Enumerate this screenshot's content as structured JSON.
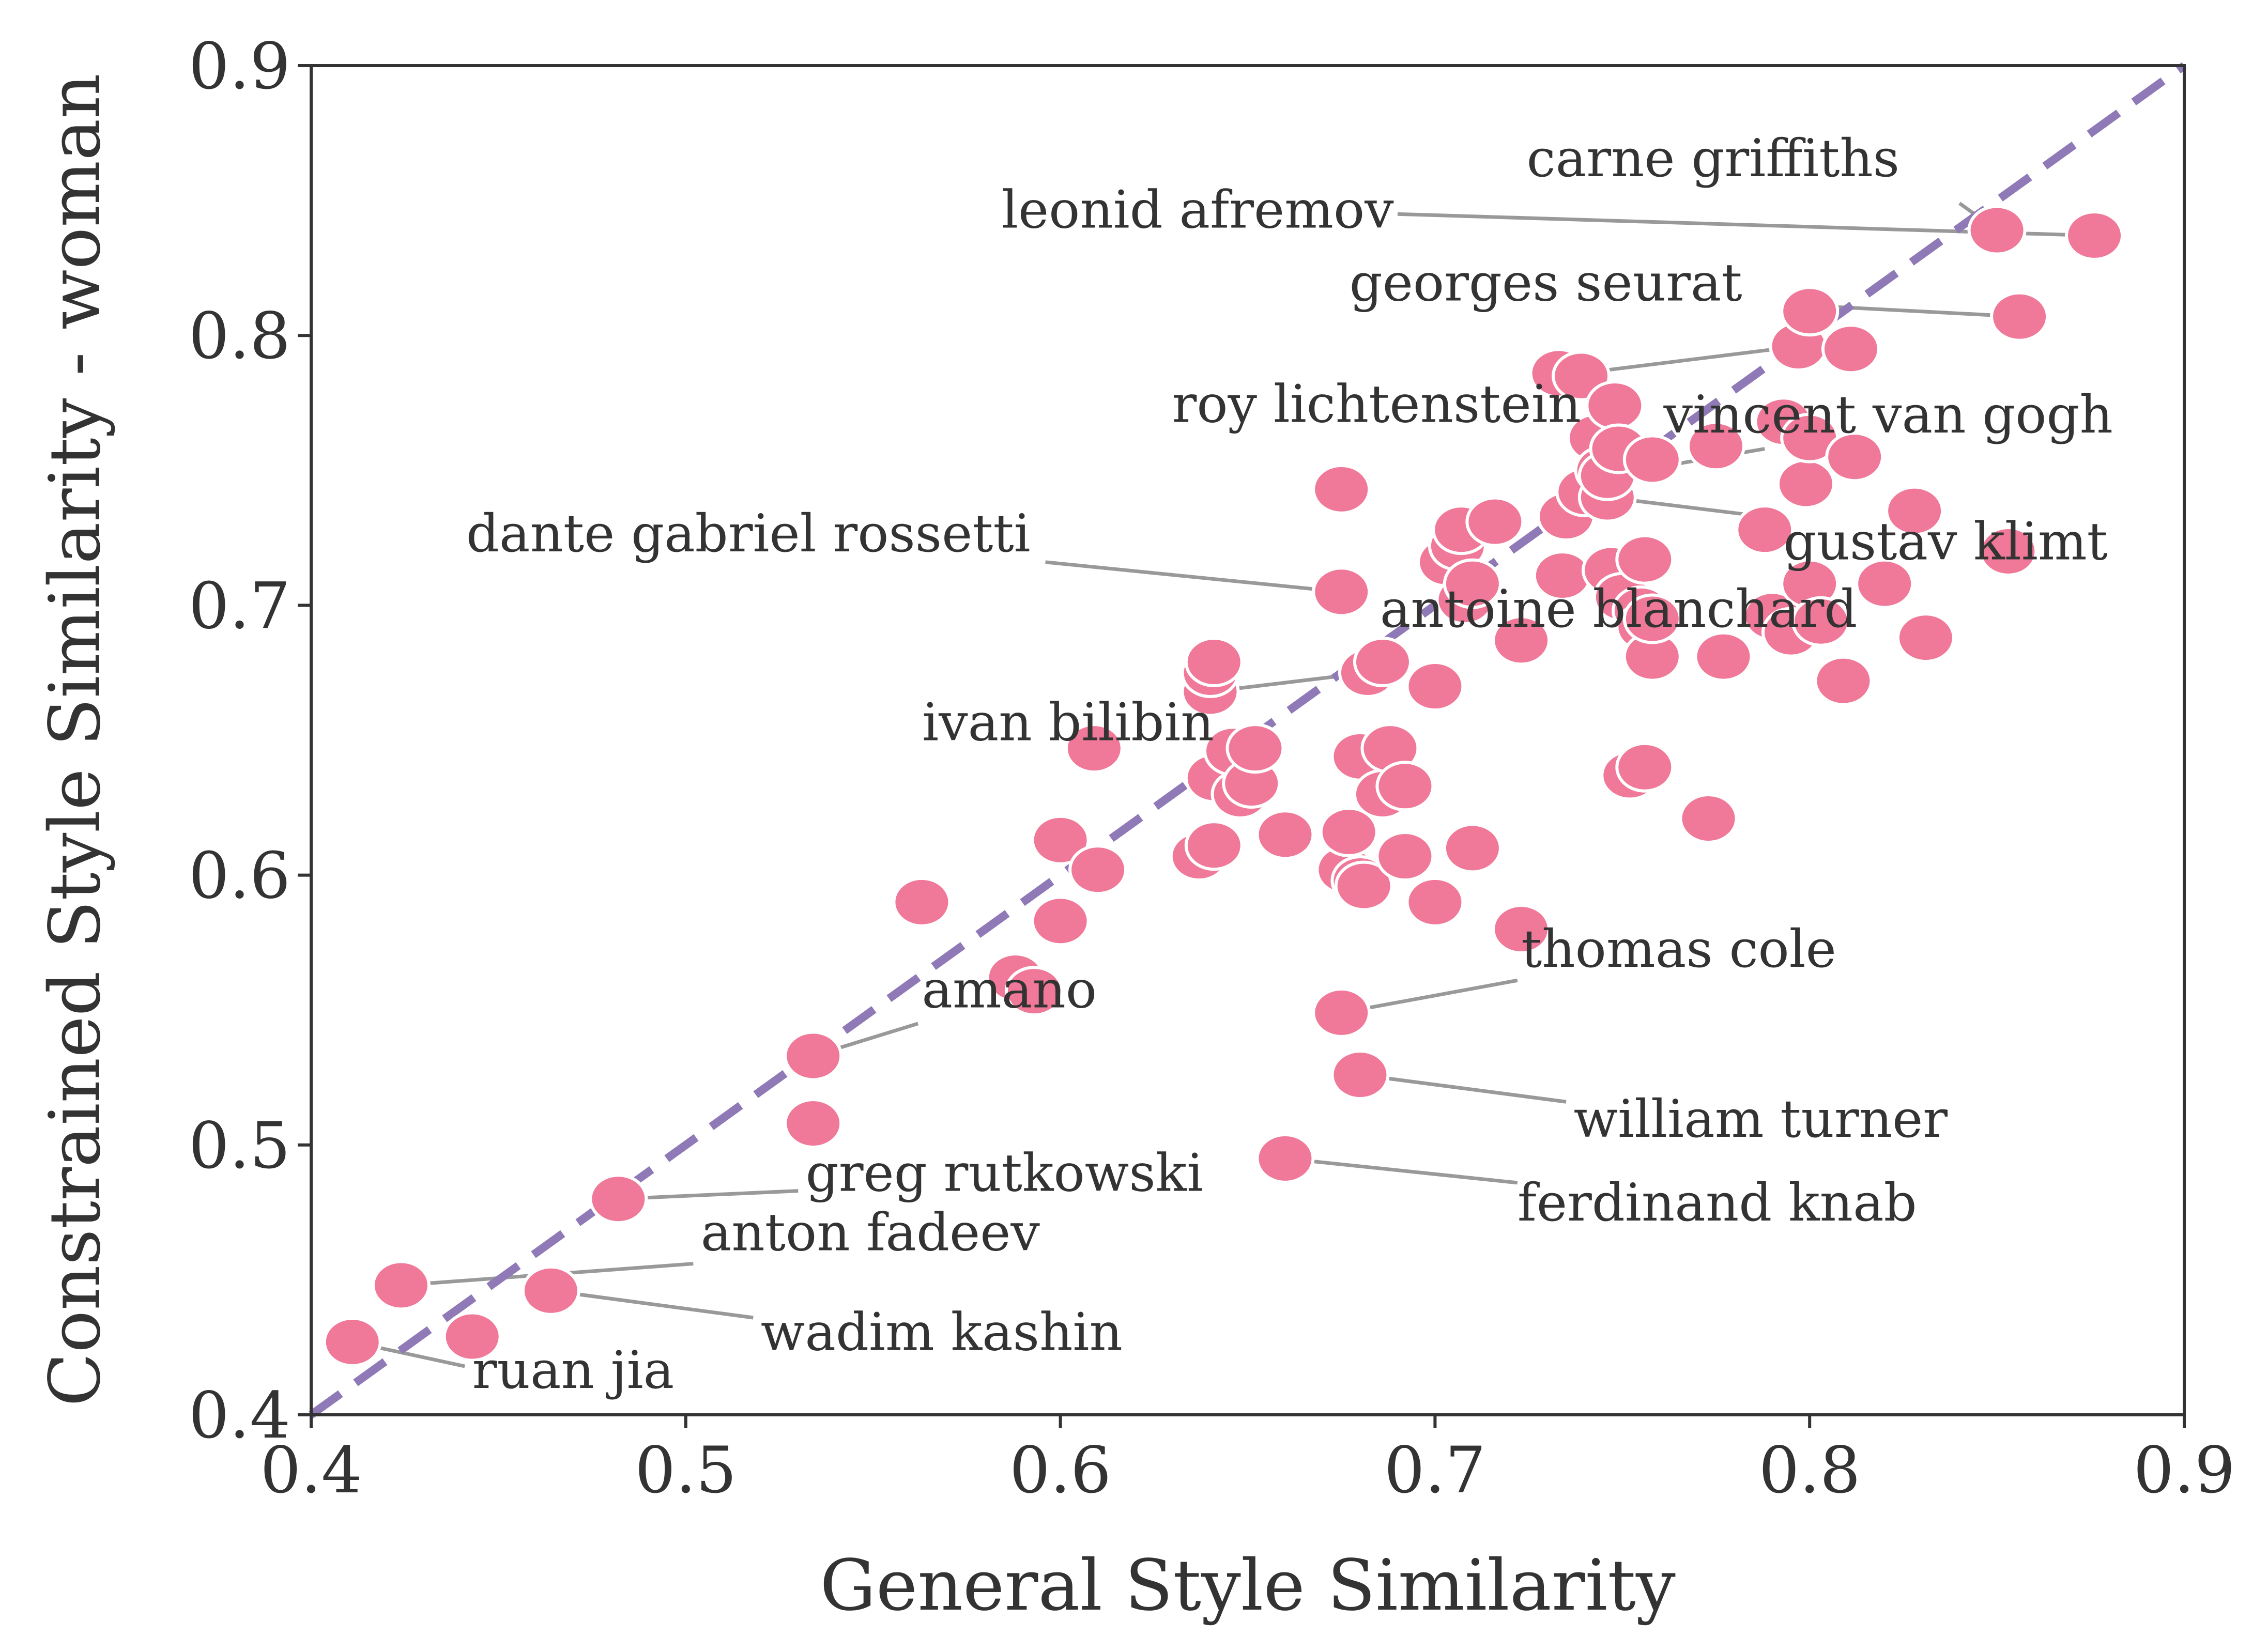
{
  "chart_data": {
    "type": "scatter",
    "xlabel": "General Style Similarity",
    "ylabel": "Constrained Style Similarity - woman",
    "xlim": [
      0.4,
      0.9
    ],
    "ylim": [
      0.4,
      0.9
    ],
    "xticks": [
      "0.4",
      "0.5",
      "0.6",
      "0.7",
      "0.8",
      "0.9"
    ],
    "yticks": [
      "0.4",
      "0.5",
      "0.6",
      "0.7",
      "0.8",
      "0.9"
    ],
    "grid": false,
    "reference_line": "y = x (dashed)",
    "colors": {
      "points": "#f07898",
      "reference_line": "#8f79b6",
      "leader_lines": "#999999"
    },
    "points": [
      [
        0.411,
        0.427
      ],
      [
        0.424,
        0.448
      ],
      [
        0.443,
        0.429
      ],
      [
        0.464,
        0.446
      ],
      [
        0.482,
        0.48
      ],
      [
        0.534,
        0.508
      ],
      [
        0.534,
        0.533
      ],
      [
        0.563,
        0.59
      ],
      [
        0.588,
        0.562
      ],
      [
        0.593,
        0.557
      ],
      [
        0.6,
        0.613
      ],
      [
        0.6,
        0.583
      ],
      [
        0.609,
        0.647
      ],
      [
        0.61,
        0.602
      ],
      [
        0.637,
        0.607
      ],
      [
        0.641,
        0.611
      ],
      [
        0.641,
        0.636
      ],
      [
        0.64,
        0.668
      ],
      [
        0.64,
        0.675
      ],
      [
        0.641,
        0.679
      ],
      [
        0.646,
        0.646
      ],
      [
        0.648,
        0.63
      ],
      [
        0.651,
        0.634
      ],
      [
        0.652,
        0.647
      ],
      [
        0.66,
        0.615
      ],
      [
        0.66,
        0.495
      ],
      [
        0.675,
        0.743
      ],
      [
        0.675,
        0.705
      ],
      [
        0.675,
        0.549
      ],
      [
        0.676,
        0.602
      ],
      [
        0.677,
        0.616
      ],
      [
        0.68,
        0.598
      ],
      [
        0.681,
        0.596
      ],
      [
        0.68,
        0.526
      ],
      [
        0.68,
        0.644
      ],
      [
        0.682,
        0.675
      ],
      [
        0.686,
        0.679
      ],
      [
        0.686,
        0.63
      ],
      [
        0.688,
        0.647
      ],
      [
        0.692,
        0.633
      ],
      [
        0.692,
        0.607
      ],
      [
        0.7,
        0.67
      ],
      [
        0.7,
        0.59
      ],
      [
        0.703,
        0.716
      ],
      [
        0.706,
        0.722
      ],
      [
        0.707,
        0.728
      ],
      [
        0.708,
        0.702
      ],
      [
        0.71,
        0.708
      ],
      [
        0.71,
        0.61
      ],
      [
        0.716,
        0.731
      ],
      [
        0.723,
        0.687
      ],
      [
        0.723,
        0.58
      ],
      [
        0.733,
        0.786
      ],
      [
        0.735,
        0.733
      ],
      [
        0.734,
        0.711
      ],
      [
        0.739,
        0.785
      ],
      [
        0.74,
        0.742
      ],
      [
        0.743,
        0.762
      ],
      [
        0.745,
        0.75
      ],
      [
        0.746,
        0.74
      ],
      [
        0.746,
        0.748
      ],
      [
        0.747,
        0.713
      ],
      [
        0.748,
        0.774
      ],
      [
        0.749,
        0.758
      ],
      [
        0.75,
        0.703
      ],
      [
        0.752,
        0.637
      ],
      [
        0.755,
        0.698
      ],
      [
        0.756,
        0.717
      ],
      [
        0.756,
        0.64
      ],
      [
        0.756,
        0.692
      ],
      [
        0.758,
        0.681
      ],
      [
        0.758,
        0.695
      ],
      [
        0.758,
        0.754
      ],
      [
        0.773,
        0.621
      ],
      [
        0.775,
        0.759
      ],
      [
        0.777,
        0.681
      ],
      [
        0.788,
        0.728
      ],
      [
        0.79,
        0.696
      ],
      [
        0.793,
        0.768
      ],
      [
        0.795,
        0.69
      ],
      [
        0.797,
        0.796
      ],
      [
        0.799,
        0.745
      ],
      [
        0.8,
        0.762
      ],
      [
        0.8,
        0.809
      ],
      [
        0.8,
        0.708
      ],
      [
        0.803,
        0.694
      ],
      [
        0.809,
        0.672
      ],
      [
        0.811,
        0.795
      ],
      [
        0.812,
        0.755
      ],
      [
        0.82,
        0.708
      ],
      [
        0.828,
        0.735
      ],
      [
        0.831,
        0.688
      ],
      [
        0.85,
        0.839
      ],
      [
        0.853,
        0.72
      ],
      [
        0.856,
        0.807
      ],
      [
        0.876,
        0.837
      ]
    ],
    "annotations": [
      {
        "text": "carne griffiths",
        "point": [
          0.85,
          0.839
        ],
        "label_at": [
          0.824,
          0.859
        ],
        "anchor": "end",
        "leader_from": [
          0.84,
          0.849
        ]
      },
      {
        "text": "leonid afremov",
        "point": [
          0.876,
          0.837
        ],
        "label_at": [
          0.689,
          0.84
        ],
        "anchor": "end",
        "leader_from": [
          0.69,
          0.845
        ]
      },
      {
        "text": "georges seurat",
        "point": [
          0.856,
          0.807
        ],
        "label_at": [
          0.782,
          0.813
        ],
        "anchor": "end",
        "leader_from": [
          0.801,
          0.811
        ]
      },
      {
        "text": "roy lichtenstein",
        "point": [
          0.797,
          0.796
        ],
        "label_at": [
          0.739,
          0.768
        ],
        "anchor": "end",
        "leader_from": [
          0.739,
          0.786
        ]
      },
      {
        "text": "vincent van gogh",
        "point": [
          0.746,
          0.748
        ],
        "label_at": [
          0.761,
          0.764
        ],
        "anchor": "start",
        "leader_from": [
          0.788,
          0.758
        ]
      },
      {
        "text": "gustav klimt",
        "point": [
          0.746,
          0.74
        ],
        "label_at": [
          0.793,
          0.717
        ],
        "anchor": "start",
        "leader_from": [
          0.787,
          0.733
        ]
      },
      {
        "text": "dante gabriel rossetti",
        "point": [
          0.675,
          0.705
        ],
        "label_at": [
          0.592,
          0.72
        ],
        "anchor": "end",
        "leader_from": [
          0.596,
          0.716
        ]
      },
      {
        "text": "antoine blanchard",
        "point": [
          0.831,
          0.688
        ],
        "label_at": [
          0.749,
          0.692
        ],
        "anchor": "middle",
        "leader_from": [
          0.824,
          0.69
        ]
      },
      {
        "text": "ivan bilibin",
        "point": [
          0.682,
          0.675
        ],
        "label_at": [
          0.641,
          0.65
        ],
        "anchor": "end",
        "leader_from": [
          0.64,
          0.668
        ]
      },
      {
        "text": "thomas cole",
        "point": [
          0.675,
          0.549
        ],
        "label_at": [
          0.723,
          0.566
        ],
        "anchor": "start",
        "leader_from": [
          0.722,
          0.561
        ]
      },
      {
        "text": "amano",
        "point": [
          0.534,
          0.533
        ],
        "label_at": [
          0.563,
          0.551
        ],
        "anchor": "start",
        "leader_from": [
          0.562,
          0.545
        ]
      },
      {
        "text": "william turner",
        "point": [
          0.68,
          0.526
        ],
        "label_at": [
          0.737,
          0.503
        ],
        "anchor": "start",
        "leader_from": [
          0.735,
          0.516
        ]
      },
      {
        "text": "greg rutkowski",
        "point": [
          0.482,
          0.48
        ],
        "label_at": [
          0.532,
          0.483
        ],
        "anchor": "start",
        "leader_from": [
          0.53,
          0.483
        ]
      },
      {
        "text": "ferdinand knab",
        "point": [
          0.66,
          0.495
        ],
        "label_at": [
          0.722,
          0.472
        ],
        "anchor": "start",
        "leader_from": [
          0.722,
          0.486
        ]
      },
      {
        "text": "anton fadeev",
        "point": [
          0.424,
          0.448
        ],
        "label_at": [
          0.504,
          0.461
        ],
        "anchor": "start",
        "leader_from": [
          0.502,
          0.456
        ]
      },
      {
        "text": "wadim kashin",
        "point": [
          0.464,
          0.446
        ],
        "label_at": [
          0.52,
          0.424
        ],
        "anchor": "start",
        "leader_from": [
          0.518,
          0.436
        ]
      },
      {
        "text": "ruan jia",
        "point": [
          0.411,
          0.427
        ],
        "label_at": [
          0.443,
          0.41
        ],
        "anchor": "start",
        "leader_from": [
          0.441,
          0.418
        ]
      }
    ]
  }
}
